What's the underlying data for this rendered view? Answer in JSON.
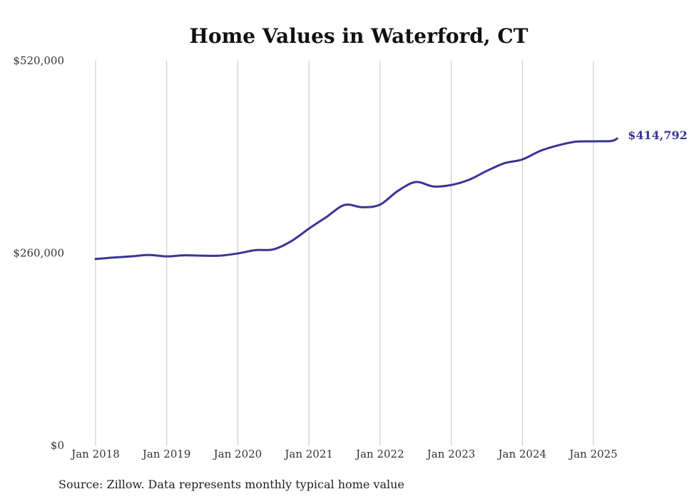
{
  "chart_data": {
    "type": "line",
    "title": "Home Values in Waterford, CT",
    "xlabel": "",
    "ylabel": "",
    "ylim": [
      0,
      520000
    ],
    "y_ticks": [
      {
        "value": 0,
        "label": "$0"
      },
      {
        "value": 260000,
        "label": "$260,000"
      },
      {
        "value": 520000,
        "label": "$520,000"
      }
    ],
    "x_ticks": [
      {
        "date": "2018-01",
        "label": "Jan 2018"
      },
      {
        "date": "2019-01",
        "label": "Jan 2019"
      },
      {
        "date": "2020-01",
        "label": "Jan 2020"
      },
      {
        "date": "2021-01",
        "label": "Jan 2021"
      },
      {
        "date": "2022-01",
        "label": "Jan 2022"
      },
      {
        "date": "2023-01",
        "label": "Jan 2023"
      },
      {
        "date": "2024-01",
        "label": "Jan 2024"
      },
      {
        "date": "2025-01",
        "label": "Jan 2025"
      }
    ],
    "grid": "vertical",
    "legend": "none",
    "series": [
      {
        "color": "#3a3593",
        "points": [
          {
            "x": "2018-01",
            "y": 252000
          },
          {
            "x": "2018-04",
            "y": 254000
          },
          {
            "x": "2018-07",
            "y": 255500
          },
          {
            "x": "2018-10",
            "y": 257500
          },
          {
            "x": "2019-01",
            "y": 255500
          },
          {
            "x": "2019-04",
            "y": 257000
          },
          {
            "x": "2019-07",
            "y": 256500
          },
          {
            "x": "2019-10",
            "y": 256500
          },
          {
            "x": "2020-01",
            "y": 259500
          },
          {
            "x": "2020-04",
            "y": 264000
          },
          {
            "x": "2020-07",
            "y": 265000
          },
          {
            "x": "2020-10",
            "y": 276000
          },
          {
            "x": "2021-01",
            "y": 293000
          },
          {
            "x": "2021-04",
            "y": 309000
          },
          {
            "x": "2021-07",
            "y": 325000
          },
          {
            "x": "2021-10",
            "y": 322000
          },
          {
            "x": "2022-01",
            "y": 325500
          },
          {
            "x": "2022-04",
            "y": 344000
          },
          {
            "x": "2022-07",
            "y": 356000
          },
          {
            "x": "2022-10",
            "y": 350000
          },
          {
            "x": "2023-01",
            "y": 352000
          },
          {
            "x": "2023-04",
            "y": 359000
          },
          {
            "x": "2023-07",
            "y": 371000
          },
          {
            "x": "2023-10",
            "y": 381500
          },
          {
            "x": "2024-01",
            "y": 386500
          },
          {
            "x": "2024-04",
            "y": 398000
          },
          {
            "x": "2024-07",
            "y": 405500
          },
          {
            "x": "2024-10",
            "y": 410500
          },
          {
            "x": "2025-01",
            "y": 411000
          },
          {
            "x": "2025-04",
            "y": 411500
          },
          {
            "x": "2025-05",
            "y": 414792
          }
        ]
      }
    ],
    "annotations": [
      {
        "x": "2025-05",
        "y": 414792,
        "label": "$414,792"
      }
    ],
    "source": "Source: Zillow. Data represents monthly typical home value"
  }
}
